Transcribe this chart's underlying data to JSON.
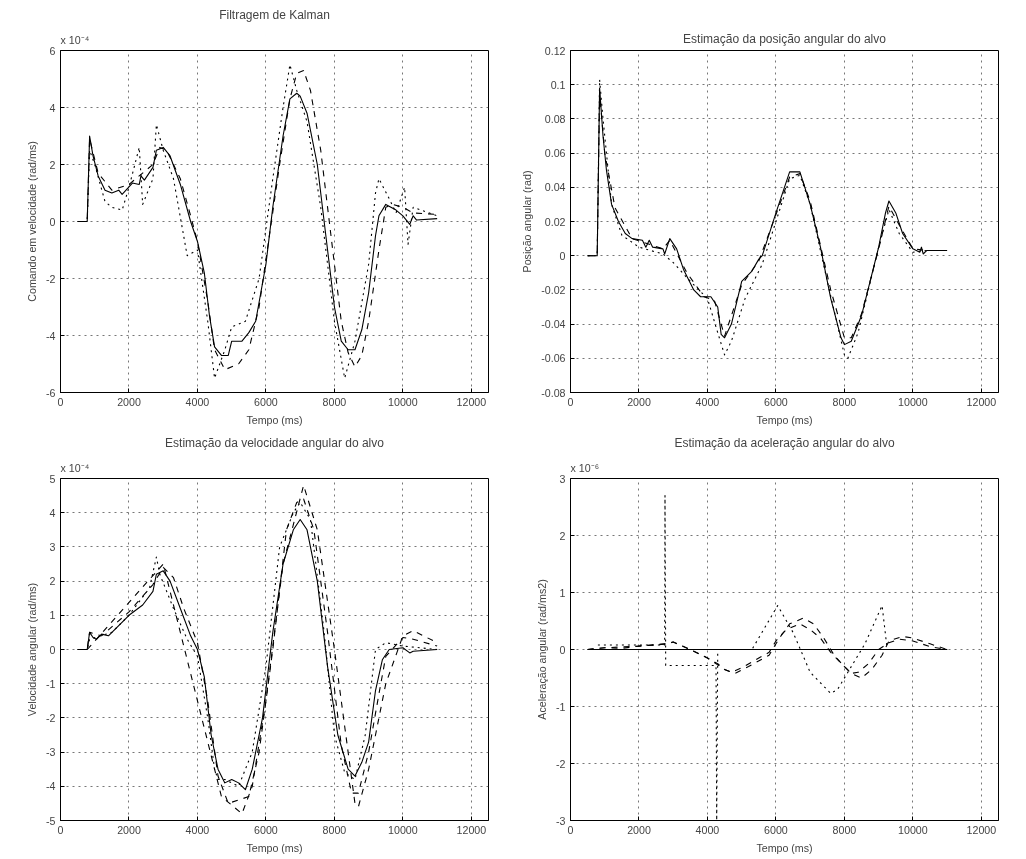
{
  "chart_data": [
    {
      "type": "line",
      "title": "Filtragem de Kalman",
      "xlabel": "Tempo (ms)",
      "ylabel": "Comando em velocidade (rad/ms)",
      "annotations": [
        "x 10⁻⁴"
      ],
      "xlim": [
        0,
        12500
      ],
      "ylim": [
        -6,
        6
      ],
      "xticks": [
        0,
        2000,
        4000,
        6000,
        8000,
        10000,
        12000
      ],
      "yticks": [
        -6,
        -4,
        -2,
        0,
        2,
        4,
        6
      ],
      "grid": true,
      "series": [
        {
          "color": "#000000",
          "line_style": "dotted",
          "x": [
            500,
            780,
            850,
            1000,
            1300,
            1500,
            1800,
            2000,
            2300,
            2400,
            2700,
            2800,
            3000,
            3300,
            3700,
            4000,
            4300,
            4500,
            4800,
            5000,
            5400,
            5800,
            6200,
            6500,
            6700,
            6900,
            7200,
            7600,
            8000,
            8300,
            8600,
            9000,
            9200,
            9300,
            9600,
            9800,
            10050,
            10150,
            10300,
            11000
          ],
          "values": [
            0,
            0,
            2.5,
            2.0,
            0.7,
            0.5,
            0.4,
            1.2,
            2.6,
            0.6,
            1.5,
            3.4,
            2.5,
            1.5,
            -1.2,
            -1.0,
            -3.5,
            -5.5,
            -4.5,
            -3.7,
            -3.5,
            -2.0,
            1.5,
            4.0,
            5.5,
            4.6,
            3.5,
            0.5,
            -3.5,
            -5.5,
            -4.2,
            -1.5,
            1.0,
            1.5,
            0.8,
            0.3,
            1.2,
            -0.8,
            0.5,
            0.2
          ]
        },
        {
          "color": "#000000",
          "line_style": "dashed",
          "x": [
            500,
            780,
            850,
            1100,
            1500,
            2000,
            2700,
            2900,
            3100,
            3500,
            3800,
            4000,
            4300,
            4500,
            4800,
            5200,
            5500,
            5800,
            6100,
            6400,
            6700,
            6900,
            7100,
            7300,
            7600,
            7900,
            8200,
            8400,
            8600,
            8800,
            9000,
            9300,
            9500,
            9700,
            10000,
            10300,
            11000
          ],
          "values": [
            0,
            0,
            2.9,
            1.7,
            1.1,
            1.3,
            2.0,
            2.6,
            2.5,
            1.5,
            0.2,
            -0.7,
            -2.8,
            -4.5,
            -5.2,
            -5.0,
            -4.5,
            -3.0,
            -0.5,
            2.0,
            4.3,
            5.2,
            5.3,
            4.6,
            2.5,
            -0.5,
            -3.5,
            -4.6,
            -5.1,
            -4.7,
            -3.5,
            -1.0,
            0.5,
            0.6,
            0.5,
            0.3,
            0.25
          ]
        },
        {
          "color": "#000000",
          "line_style": "solid",
          "x": [
            500,
            780,
            850,
            950,
            1100,
            1300,
            1500,
            1700,
            1800,
            2100,
            2300,
            2350,
            2450,
            2700,
            2800,
            3000,
            3200,
            3500,
            3800,
            4000,
            4200,
            4350,
            4500,
            4700,
            4900,
            5000,
            5300,
            5500,
            5700,
            6000,
            6200,
            6500,
            6700,
            6900,
            7000,
            7200,
            7500,
            7800,
            8000,
            8200,
            8400,
            8600,
            8800,
            9000,
            9200,
            9300,
            9500,
            9800,
            10000,
            10200,
            10300,
            10400,
            11000
          ],
          "values": [
            0,
            0,
            3.0,
            2.3,
            1.6,
            1.1,
            1.0,
            1.1,
            0.95,
            1.35,
            1.3,
            1.6,
            1.45,
            1.9,
            2.5,
            2.6,
            2.3,
            1.3,
            0,
            -0.7,
            -1.8,
            -3.3,
            -4.4,
            -4.7,
            -4.7,
            -4.2,
            -4.2,
            -3.9,
            -3.5,
            -1.5,
            0.5,
            3.0,
            4.3,
            4.5,
            4.4,
            3.8,
            2.0,
            -1.0,
            -3.0,
            -4.2,
            -4.5,
            -4.5,
            -3.8,
            -2.5,
            -0.5,
            0.2,
            0.6,
            0.4,
            0.2,
            -0.1,
            0.2,
            0.05,
            0.1
          ]
        }
      ]
    },
    {
      "type": "line",
      "title": "Estimação da posição angular do alvo",
      "xlabel": "Tempo (ms)",
      "ylabel": "Posição angular (rad)",
      "xlim": [
        0,
        12500
      ],
      "ylim": [
        -0.08,
        0.12
      ],
      "xticks": [
        0,
        2000,
        4000,
        6000,
        8000,
        10000,
        12000
      ],
      "yticks": [
        -0.08,
        -0.06,
        -0.04,
        -0.02,
        0,
        0.02,
        0.04,
        0.06,
        0.08,
        0.1,
        0.12
      ],
      "grid": true,
      "series": [
        {
          "color": "#000000",
          "line_style": "dotted",
          "x": [
            500,
            780,
            850,
            950,
            1200,
            1500,
            2000,
            2700,
            3000,
            3500,
            4000,
            4300,
            4500,
            4700,
            5100,
            5600,
            6000,
            6400,
            6700,
            7000,
            7500,
            8000,
            8100,
            8400,
            9000,
            9300,
            9600,
            10000,
            10400,
            11000
          ],
          "values": [
            0,
            0,
            0.103,
            0.08,
            0.03,
            0.012,
            0.005,
            0.001,
            -0.004,
            -0.015,
            -0.025,
            -0.045,
            -0.058,
            -0.05,
            -0.025,
            -0.005,
            0.02,
            0.045,
            0.047,
            0.03,
            -0.015,
            -0.058,
            -0.06,
            -0.045,
            0.005,
            0.027,
            0.013,
            0.002,
            0.003,
            0.003
          ]
        },
        {
          "color": "#000000",
          "line_style": "dashed",
          "x": [
            500,
            780,
            850,
            1000,
            1300,
            1800,
            2700,
            2900,
            3400,
            3900,
            4200,
            4500,
            5000,
            5500,
            6000,
            6400,
            6700,
            7000,
            7600,
            8000,
            8200,
            8500,
            9000,
            9300,
            9600,
            10000,
            10400,
            11000
          ],
          "values": [
            0,
            0,
            0.095,
            0.06,
            0.028,
            0.01,
            0.004,
            0.009,
            -0.01,
            -0.024,
            -0.026,
            -0.047,
            -0.017,
            -0.003,
            0.024,
            0.046,
            0.048,
            0.032,
            -0.02,
            -0.048,
            -0.048,
            -0.034,
            0.004,
            0.029,
            0.018,
            0.004,
            0.003,
            0.003
          ]
        },
        {
          "color": "#000000",
          "line_style": "solid",
          "x": [
            500,
            780,
            850,
            950,
            1050,
            1200,
            1400,
            1600,
            1800,
            2100,
            2200,
            2300,
            2400,
            2700,
            2750,
            2900,
            3100,
            3300,
            3600,
            3800,
            4100,
            4300,
            4400,
            4500,
            4700,
            5000,
            5300,
            5500,
            5600,
            6000,
            6300,
            6400,
            6700,
            7000,
            7300,
            7600,
            7900,
            8000,
            8200,
            8500,
            9000,
            9200,
            9300,
            9500,
            9700,
            10000,
            10200,
            10250,
            10300,
            10400,
            11000
          ],
          "values": [
            0,
            0,
            0.098,
            0.07,
            0.05,
            0.03,
            0.02,
            0.013,
            0.01,
            0.009,
            0.005,
            0.009,
            0.005,
            0.004,
            0.001,
            0.01,
            0.004,
            -0.008,
            -0.02,
            -0.024,
            -0.024,
            -0.03,
            -0.046,
            -0.048,
            -0.04,
            -0.015,
            -0.009,
            -0.002,
            0.0,
            0.025,
            0.043,
            0.049,
            0.049,
            0.03,
            0.005,
            -0.025,
            -0.048,
            -0.052,
            -0.05,
            -0.035,
            0.005,
            0.025,
            0.032,
            0.025,
            0.013,
            0.004,
            0.002,
            0.005,
            0.001,
            0.003,
            0.003
          ]
        }
      ]
    },
    {
      "type": "line",
      "title": "Estimação da velocidade angular do alvo",
      "xlabel": "Tempo (ms)",
      "ylabel": "Velocidade angular (rad/ms)",
      "annotations": [
        "x 10⁻⁴"
      ],
      "xlim": [
        0,
        12500
      ],
      "ylim": [
        -5,
        5
      ],
      "xticks": [
        0,
        2000,
        4000,
        6000,
        8000,
        10000,
        12000
      ],
      "yticks": [
        -5,
        -4,
        -3,
        -2,
        -1,
        0,
        1,
        2,
        3,
        4,
        5
      ],
      "grid": true,
      "series": [
        {
          "color": "#000000",
          "line_style": "dotted",
          "x": [
            500,
            780,
            850,
            1500,
            2000,
            2600,
            2800,
            2900,
            3300,
            3700,
            4000,
            4300,
            4500,
            4600,
            4800,
            5200,
            5600,
            6000,
            6400,
            6800,
            7000,
            7300,
            7700,
            8000,
            8300,
            8600,
            8900,
            9200,
            9500,
            10000,
            11000
          ],
          "values": [
            0,
            0,
            0.3,
            0.5,
            1.0,
            1.8,
            2.7,
            2.2,
            1.2,
            0.3,
            -0.2,
            -2.0,
            -3.5,
            -3.8,
            -3.8,
            -4.0,
            -3.0,
            -0.5,
            3.0,
            4.0,
            4.3,
            3.8,
            0.5,
            -2.5,
            -3.6,
            -3.8,
            -2.5,
            0,
            0.2,
            0.1,
            0
          ]
        },
        {
          "color": "#000000",
          "line_style": "dashed",
          "x": [
            780,
            3000,
            4700,
            5300,
            5600,
            6000,
            6500,
            7100,
            7500,
            8000,
            8600,
            8700,
            9000,
            9500,
            10000,
            10300,
            11000
          ],
          "values": [
            0,
            2.5,
            -4.3,
            -4.8,
            -4.0,
            -1.5,
            2.5,
            4.8,
            3.5,
            0,
            -4.5,
            -4.6,
            -3.5,
            -1.0,
            0.4,
            0.55,
            0.2
          ]
        },
        {
          "color": "#000000",
          "line_style": "dashed",
          "x": [
            500,
            780,
            850,
            1200,
            2000,
            2700,
            3000,
            3300,
            3600,
            4000,
            4300,
            4600,
            4900,
            5200,
            5500,
            5800,
            6200,
            6600,
            6900,
            7100,
            7400,
            7800,
            8200,
            8500,
            8700,
            9000,
            9300,
            9500,
            10000,
            10300,
            11000
          ],
          "values": [
            0,
            0,
            0.5,
            0.4,
            1.1,
            1.9,
            2.4,
            2.1,
            1.2,
            0.2,
            -1.5,
            -3.7,
            -4.5,
            -4.4,
            -4.3,
            -3.0,
            0.0,
            3.5,
            4.3,
            4.4,
            3.5,
            0.5,
            -2.8,
            -4.2,
            -4.2,
            -3.0,
            -1.3,
            -0.2,
            0.35,
            0.3,
            0.1
          ]
        },
        {
          "color": "#000000",
          "line_style": "solid",
          "x": [
            500,
            780,
            850,
            950,
            1050,
            1200,
            1400,
            1700,
            2000,
            2400,
            2700,
            2800,
            3000,
            3200,
            3500,
            3800,
            4000,
            4200,
            4400,
            4600,
            4800,
            5000,
            5200,
            5400,
            5600,
            5900,
            6200,
            6500,
            6800,
            7000,
            7200,
            7500,
            7800,
            8100,
            8400,
            8600,
            8800,
            9000,
            9200,
            9400,
            9600,
            10000,
            10200,
            10300,
            11000
          ],
          "values": [
            0,
            0,
            0.5,
            0.35,
            0.3,
            0.45,
            0.4,
            0.7,
            1.0,
            1.3,
            1.7,
            2.2,
            2.3,
            2.0,
            1.2,
            0.4,
            0,
            -0.8,
            -2.5,
            -3.5,
            -3.9,
            -3.8,
            -3.9,
            -4.1,
            -3.5,
            -2.0,
            0.5,
            2.5,
            3.5,
            3.8,
            3.5,
            2.0,
            -0.5,
            -2.5,
            -3.5,
            -3.7,
            -3.3,
            -2.7,
            -1.2,
            -0.3,
            0,
            0.05,
            -0.1,
            -0.05,
            0
          ]
        }
      ]
    },
    {
      "type": "line",
      "title": "Estimação da aceleração angular do alvo",
      "xlabel": "Tempo (ms)",
      "ylabel": "Aceleração angular (rad/ms2)",
      "annotations": [
        "x 10⁻⁶"
      ],
      "xlim": [
        0,
        12500
      ],
      "ylim": [
        -3,
        3
      ],
      "xticks": [
        0,
        2000,
        4000,
        6000,
        8000,
        10000,
        12000
      ],
      "yticks": [
        -3,
        -2,
        -1,
        0,
        1,
        2,
        3
      ],
      "grid": true,
      "series": [
        {
          "color": "#000000",
          "line_style": "dotted",
          "x": [
            800,
            2750,
            2760,
            2780,
            4250,
            4270,
            4300,
            5300,
            6050,
            6500,
            7000,
            7600,
            7800,
            8200,
            8600,
            9100,
            9250,
            11000
          ],
          "values": [
            0.08,
            0.08,
            2.7,
            -0.28,
            -0.28,
            -3.0,
            0,
            0,
            0.77,
            0.3,
            -0.4,
            -0.77,
            -0.7,
            -0.3,
            0.1,
            0.77,
            0,
            0
          ]
        },
        {
          "color": "#000000",
          "line_style": "dashed",
          "x": [
            500,
            1000,
            2000,
            2800,
            3000,
            3500,
            4000,
            4500,
            4800,
            5200,
            5800,
            6100,
            6400,
            6800,
            7100,
            7400,
            7700,
            8000,
            8200,
            8500,
            8800,
            9100,
            9300,
            9700,
            10000,
            10500,
            11000
          ],
          "values": [
            0,
            0.03,
            0.06,
            0.1,
            0.13,
            0.0,
            -0.15,
            -0.35,
            -0.42,
            -0.3,
            -0.1,
            0.2,
            0.45,
            0.55,
            0.45,
            0.2,
            -0.1,
            -0.3,
            -0.42,
            -0.5,
            -0.35,
            -0.1,
            0.15,
            0.23,
            0.2,
            0.1,
            0
          ]
        },
        {
          "color": "#000000",
          "line_style": "dashed",
          "x": [
            500,
            1000,
            1500,
            2000,
            2500,
            2800,
            3000,
            3500,
            4000,
            4300,
            4500,
            4700,
            5000,
            5500,
            5800,
            6000,
            6300,
            6700,
            7000,
            7300,
            7600,
            8000,
            8200,
            8400,
            8700,
            9000,
            9300,
            9600,
            10000,
            10500,
            11000
          ],
          "values": [
            0,
            0.03,
            0.02,
            0.06,
            0.08,
            0.1,
            0.13,
            0.0,
            -0.15,
            -0.25,
            -0.35,
            -0.4,
            -0.32,
            -0.15,
            -0.05,
            0.15,
            0.35,
            0.45,
            0.35,
            0.2,
            -0.05,
            -0.3,
            -0.42,
            -0.4,
            -0.25,
            0.0,
            0.12,
            0.18,
            0.15,
            0.05,
            0
          ]
        },
        {
          "color": "#000000",
          "line_style": "solid",
          "x": [
            500,
            11000
          ],
          "values": [
            0,
            0
          ]
        }
      ]
    }
  ]
}
